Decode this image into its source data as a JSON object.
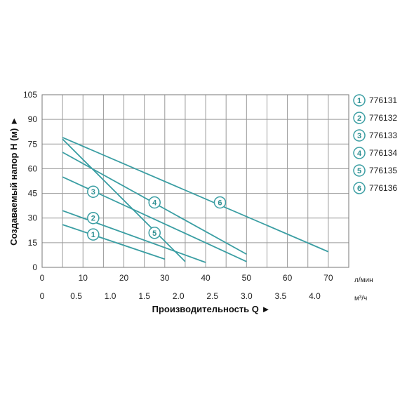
{
  "chart_data": {
    "type": "line",
    "ylabel": "Создаваемый напор H (м) ►",
    "xlabel": "Производительность Q ►",
    "x_unit_primary": "л/мин",
    "x_unit_secondary": "м³/ч",
    "ylim": [
      0,
      105
    ],
    "xlim": [
      0,
      75
    ],
    "y_ticks": [
      "0",
      "15",
      "30",
      "45",
      "60",
      "75",
      "90",
      "105"
    ],
    "x_ticks_primary": [
      "0",
      "10",
      "20",
      "30",
      "40",
      "50",
      "60",
      "70"
    ],
    "x_ticks_secondary": [
      "0",
      "0.5",
      "1.0",
      "1.5",
      "2.0",
      "2.5",
      "3.0",
      "3.5",
      "4.0"
    ],
    "grid": true,
    "legend_position": "right",
    "line_color": "#3a9ea3",
    "series": [
      {
        "name": "776131",
        "marker": "1",
        "x": [
          5,
          30
        ],
        "y": [
          26,
          5
        ],
        "marker_at": [
          12.5,
          20
        ]
      },
      {
        "name": "776132",
        "marker": "2",
        "x": [
          5,
          40
        ],
        "y": [
          34.5,
          3
        ],
        "marker_at": [
          12.5,
          30
        ]
      },
      {
        "name": "776133",
        "marker": "3",
        "x": [
          5,
          50
        ],
        "y": [
          55,
          3.5
        ],
        "marker_at": [
          12.5,
          46
        ]
      },
      {
        "name": "776134",
        "marker": "4",
        "x": [
          5,
          50
        ],
        "y": [
          70,
          8
        ],
        "marker_at": [
          27.5,
          39.5
        ]
      },
      {
        "name": "776135",
        "marker": "5",
        "x": [
          5,
          35
        ],
        "y": [
          78,
          3.5
        ],
        "marker_at": [
          27.5,
          21
        ]
      },
      {
        "name": "776136",
        "marker": "6",
        "x": [
          5,
          70
        ],
        "y": [
          79,
          9.5
        ],
        "marker_at": [
          43.5,
          39.5
        ]
      }
    ]
  }
}
